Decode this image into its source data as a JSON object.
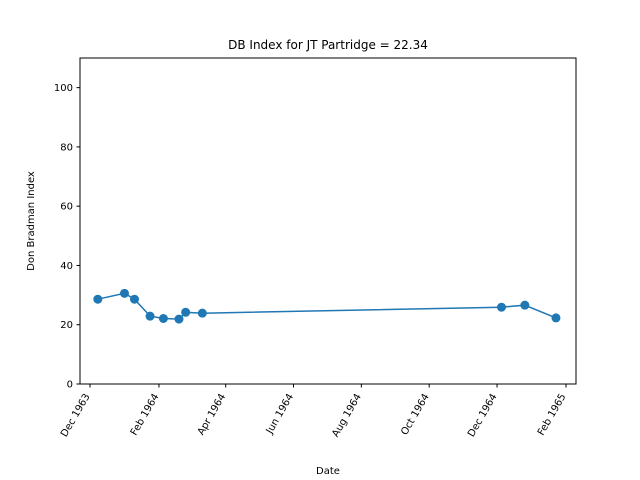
{
  "chart_data": {
    "type": "line",
    "title": "DB Index for JT Partridge = 22.34",
    "xlabel": "Date",
    "ylabel": "Don Bradman Index",
    "ylim": [
      0,
      110
    ],
    "xlim": [
      "1963-11-22",
      "1965-02-10"
    ],
    "grid": false,
    "color": "#1f77b4",
    "x_ticks": [
      {
        "date": "1963-12-01",
        "label": "Dec 1963"
      },
      {
        "date": "1964-02-01",
        "label": "Feb 1964"
      },
      {
        "date": "1964-04-01",
        "label": "Apr 1964"
      },
      {
        "date": "1964-06-01",
        "label": "Jun 1964"
      },
      {
        "date": "1964-08-01",
        "label": "Aug 1964"
      },
      {
        "date": "1964-10-01",
        "label": "Oct 1964"
      },
      {
        "date": "1964-12-01",
        "label": "Dec 1964"
      },
      {
        "date": "1965-02-01",
        "label": "Feb 1965"
      }
    ],
    "y_ticks": [
      0,
      20,
      40,
      60,
      80,
      100
    ],
    "x": [
      "1963-12-08",
      "1964-01-01",
      "1964-01-10",
      "1964-01-24",
      "1964-02-05",
      "1964-02-19",
      "1964-02-25",
      "1964-03-11",
      "1964-12-05",
      "1964-12-26",
      "1965-01-23"
    ],
    "y": [
      28.6,
      30.6,
      28.6,
      22.9,
      22.1,
      21.9,
      24.2,
      23.9,
      25.9,
      26.6,
      22.3
    ]
  }
}
